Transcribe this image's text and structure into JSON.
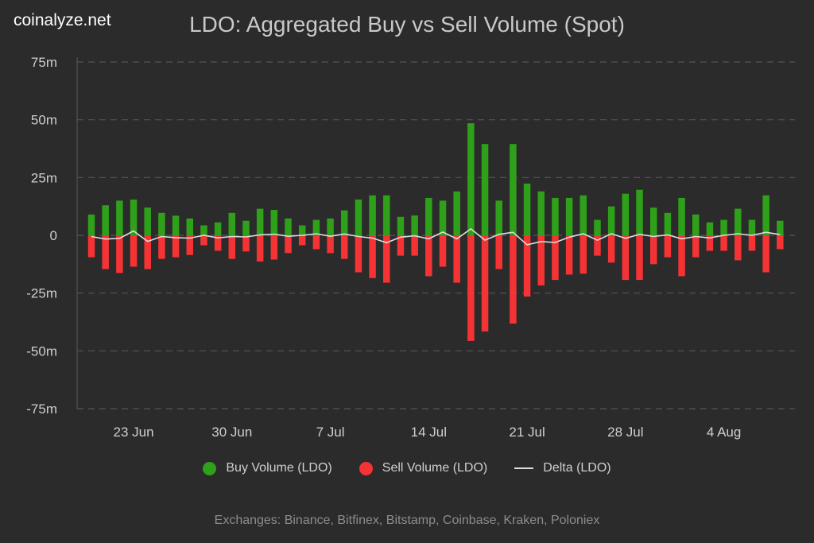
{
  "brand": "coinalyze.net",
  "colors": {
    "background": "#2b2b2b",
    "buy": "#2fa01a",
    "sell": "#f53335",
    "delta": "#dddddd"
  },
  "chart_data": {
    "type": "bar",
    "title": "LDO: Aggregated Buy vs Sell Volume (Spot)",
    "ylim": [
      -75,
      75
    ],
    "y_unit": "m",
    "grid": "horizontal dashed",
    "legend_position": "bottom",
    "y_ticks": [
      "75m",
      "50m",
      "25m",
      "0",
      "-25m",
      "-50m",
      "-75m"
    ],
    "x_tick_labels": [
      "23 Jun",
      "30 Jun",
      "7 Jul",
      "14 Jul",
      "21 Jul",
      "28 Jul",
      "4 Aug"
    ],
    "categories": [
      "20 Jun",
      "21 Jun",
      "22 Jun",
      "23 Jun",
      "24 Jun",
      "25 Jun",
      "26 Jun",
      "27 Jun",
      "28 Jun",
      "29 Jun",
      "30 Jun",
      "1 Jul",
      "2 Jul",
      "3 Jul",
      "4 Jul",
      "5 Jul",
      "6 Jul",
      "7 Jul",
      "8 Jul",
      "9 Jul",
      "10 Jul",
      "11 Jul",
      "12 Jul",
      "13 Jul",
      "14 Jul",
      "15 Jul",
      "16 Jul",
      "17 Jul",
      "18 Jul",
      "19 Jul",
      "20 Jul",
      "21 Jul",
      "22 Jul",
      "23 Jul",
      "24 Jul",
      "25 Jul",
      "26 Jul",
      "27 Jul",
      "28 Jul",
      "29 Jul",
      "30 Jul",
      "31 Jul",
      "1 Aug",
      "2 Aug",
      "3 Aug",
      "4 Aug",
      "5 Aug",
      "6 Aug",
      "7 Aug",
      "8 Aug"
    ],
    "series": [
      {
        "name": "Buy Volume (LDO)",
        "type": "bar",
        "values": [
          9,
          13,
          15,
          15.5,
          12,
          9.7,
          8.5,
          7.3,
          4.3,
          5.6,
          9.7,
          6.3,
          11.5,
          11,
          7.3,
          4.3,
          6.7,
          7.3,
          10.8,
          15.5,
          17.3,
          17.3,
          8,
          8.6,
          16.2,
          15,
          19,
          48.5,
          39.5,
          15,
          39.5,
          22.4,
          19,
          16.2,
          16.2,
          17.3,
          6.7,
          12.5,
          18,
          19.7,
          12,
          9.7,
          16.2,
          9,
          5.6,
          6.7,
          11.5,
          6.7,
          17.3,
          6.3
        ]
      },
      {
        "name": "Sell Volume (LDO)",
        "type": "bar",
        "values": [
          -9.5,
          -14.6,
          -16.3,
          -13.6,
          -14.6,
          -10.2,
          -9.5,
          -8.5,
          -4.3,
          -6.7,
          -10.2,
          -7,
          -11.3,
          -10.5,
          -7.7,
          -4.3,
          -6,
          -7.7,
          -10.2,
          -16,
          -18.5,
          -20.5,
          -8.8,
          -8.8,
          -17.7,
          -13.6,
          -20.5,
          -45.7,
          -41.6,
          -14.6,
          -38.2,
          -26.5,
          -21.7,
          -19.3,
          -17,
          -16.6,
          -8.8,
          -11.8,
          -19.3,
          -19.3,
          -12.5,
          -9.5,
          -17.7,
          -9.5,
          -6.7,
          -6.7,
          -10.8,
          -6.7,
          -16,
          -6
        ]
      },
      {
        "name": "Delta (LDO)",
        "type": "line",
        "values": [
          -0.5,
          -1.6,
          -1.3,
          1.9,
          -2.6,
          -0.5,
          -1,
          -1.2,
          0,
          -1.1,
          -0.5,
          -0.7,
          0.2,
          0.5,
          -0.4,
          0,
          0.7,
          -0.4,
          0.6,
          -0.5,
          -1.2,
          -3.2,
          -0.8,
          -0.2,
          -1.5,
          1.4,
          -1.5,
          2.8,
          -2.1,
          0.4,
          1.3,
          -4.1,
          -2.7,
          -3.1,
          -0.8,
          0.7,
          -2.1,
          0.7,
          -1.3,
          0.4,
          -0.5,
          0.2,
          -1.5,
          -0.5,
          -1.1,
          0,
          0.7,
          0,
          1.3,
          0.3
        ]
      }
    ]
  },
  "footer": "Exchanges: Binance, Bitfinex, Bitstamp, Coinbase, Kraken, Poloniex"
}
